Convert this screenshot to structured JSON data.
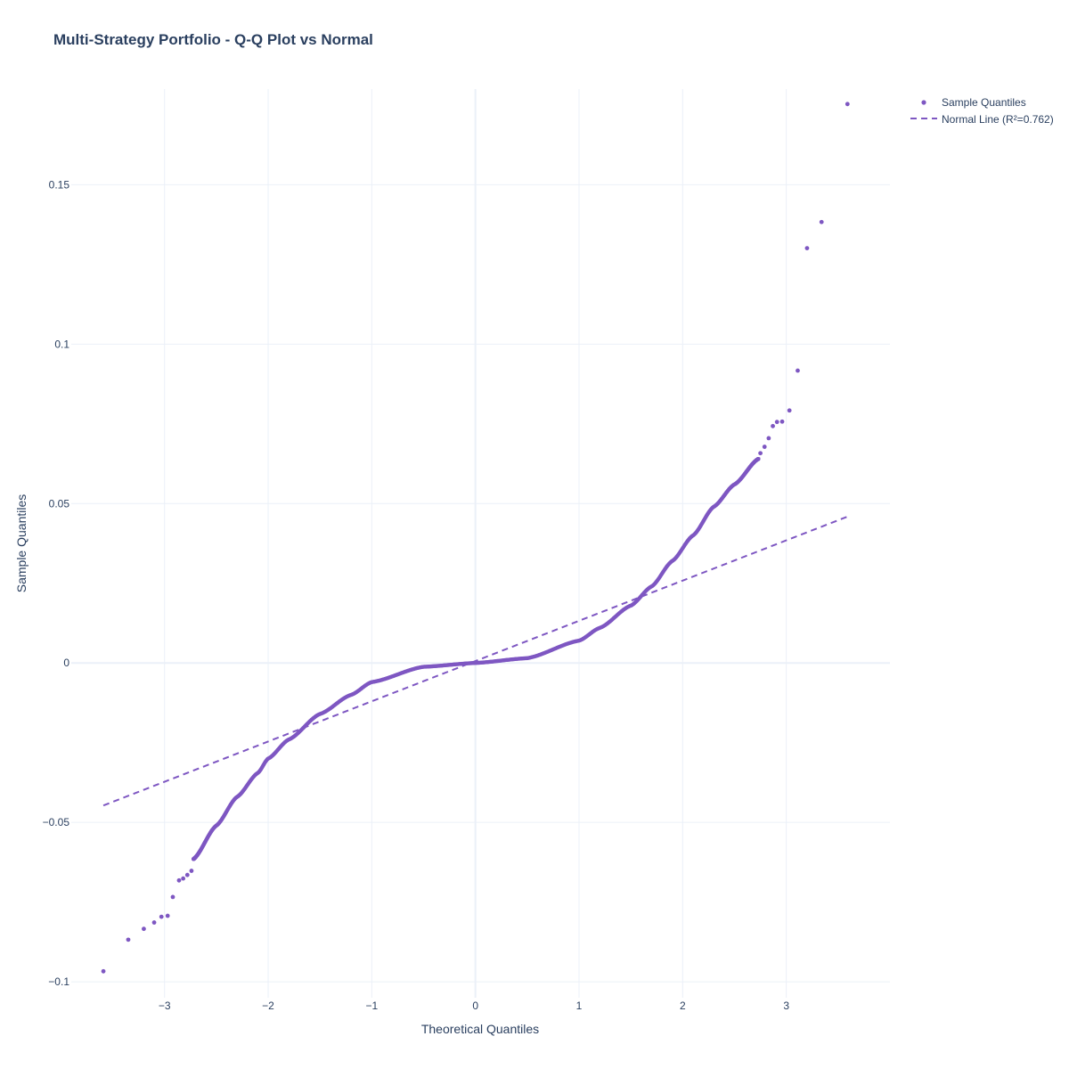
{
  "chart_data": {
    "type": "scatter",
    "title": "Multi-Strategy Portfolio - Q-Q Plot vs Normal",
    "xlabel": "Theoretical Quantiles",
    "ylabel": "Sample Quantiles",
    "xlim": [
      -3.9,
      4.0
    ],
    "ylim": [
      -0.105,
      0.18
    ],
    "x_ticks": [
      -3,
      -2,
      -1,
      0,
      1,
      2,
      3
    ],
    "x_tick_labels": [
      "−3",
      "−2",
      "−1",
      "0",
      "1",
      "2",
      "3"
    ],
    "y_ticks": [
      -0.1,
      -0.05,
      0,
      0.05,
      0.1,
      0.15
    ],
    "y_tick_labels": [
      "−0.1",
      "−0.05",
      "0",
      "0.05",
      "0.1",
      "0.15"
    ],
    "grid": true,
    "legend_position": "top-right",
    "colors": {
      "series": "#7e57c2",
      "text": "#2a3f5f",
      "grid": "#ebf0f8"
    },
    "series": [
      {
        "name": "Sample Quantiles",
        "mode": "markers",
        "tail_points": [
          [
            -3.59,
            -0.0967
          ],
          [
            -3.35,
            -0.0868
          ],
          [
            -3.2,
            -0.0834
          ],
          [
            -3.1,
            -0.0814
          ],
          [
            -3.03,
            -0.0796
          ],
          [
            -2.97,
            -0.0793
          ],
          [
            -2.92,
            -0.0734
          ],
          [
            -2.86,
            -0.0682
          ],
          [
            -2.82,
            -0.0676
          ],
          [
            -2.78,
            -0.0665
          ],
          [
            -2.74,
            -0.0652
          ],
          [
            2.75,
            0.0658
          ],
          [
            2.79,
            0.0678
          ],
          [
            2.83,
            0.0705
          ],
          [
            2.87,
            0.0743
          ],
          [
            2.91,
            0.0756
          ],
          [
            2.96,
            0.0757
          ],
          [
            3.03,
            0.0792
          ],
          [
            3.11,
            0.0917
          ],
          [
            3.2,
            0.1301
          ],
          [
            3.34,
            0.1383
          ],
          [
            3.59,
            0.1753
          ]
        ],
        "body_range": [
          -2.72,
          2.73
        ],
        "body_points": 1000
      },
      {
        "name": "Normal Line (R²=0.762)",
        "mode": "lines",
        "line_dash": "dash",
        "x": [
          -3.59,
          3.59
        ],
        "y": [
          -0.0447,
          0.0459
        ]
      }
    ]
  }
}
